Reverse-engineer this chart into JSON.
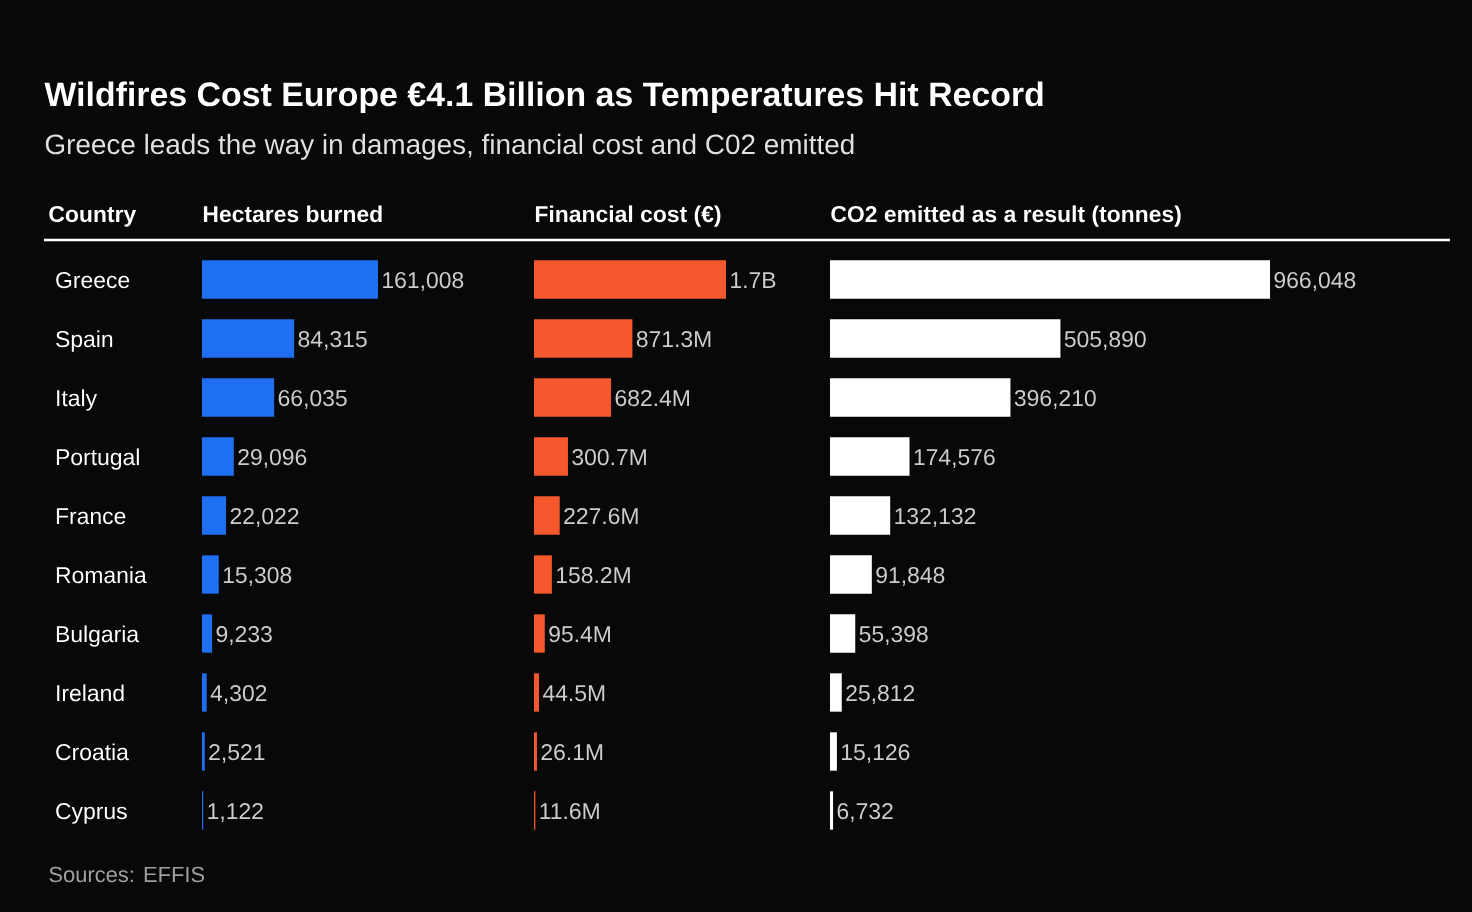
{
  "chart_data": [
    {
      "type": "bar",
      "orientation": "horizontal",
      "title": "Wildfires Cost Europe €4.1 Billion as Temperatures Hit Record",
      "subtitle": "Greece leads the way in damages, financial cost and C02 emitted",
      "ylabel": "Country",
      "xlabel": "Hectares burned",
      "tick_labels": "y",
      "categories": [
        "Greece",
        "Spain",
        "Italy",
        "Portugal",
        "France",
        "Romania",
        "Bulgaria",
        "Ireland",
        "Croatia",
        "Cyprus"
      ],
      "values": [
        161008,
        84315,
        66035,
        29096,
        22022,
        15308,
        9233,
        4302,
        2521,
        1122
      ],
      "value_labels": [
        "161,008",
        "84,315",
        "66,035",
        "29,096",
        "22,022",
        "15,308",
        "9,233",
        "4,302",
        "2,521",
        "1,122"
      ],
      "color": "#1f6ff2",
      "annotations": [
        "Sources: EFFIS"
      ]
    },
    {
      "type": "bar",
      "orientation": "horizontal",
      "xlabel": "Financial cost (€)",
      "tick_labels": false,
      "values": [
        1700000000,
        871300000,
        682400000,
        300700000,
        227600000,
        158200000,
        95400000,
        44500000,
        26100000,
        11600000
      ],
      "value_labels": [
        "1.7B",
        "871.3M",
        "682.4M",
        "300.7M",
        "227.6M",
        "158.2M",
        "95.4M",
        "44.5M",
        "26.1M",
        "11.6M"
      ],
      "color": "#f4582c"
    },
    {
      "type": "bar",
      "orientation": "horizontal",
      "xlabel": "CO2 emitted as a result (tonnes)",
      "tick_labels": false,
      "values": [
        966048,
        505890,
        396210,
        174576,
        132132,
        91848,
        55398,
        25812,
        15126,
        6732
      ],
      "value_labels": [
        "966,048",
        "505,890",
        "396,210",
        "174,576",
        "132,132",
        "91,848",
        "55,398",
        "25,812",
        "15,126",
        "6,732"
      ],
      "color": "#ffffff"
    }
  ]
}
